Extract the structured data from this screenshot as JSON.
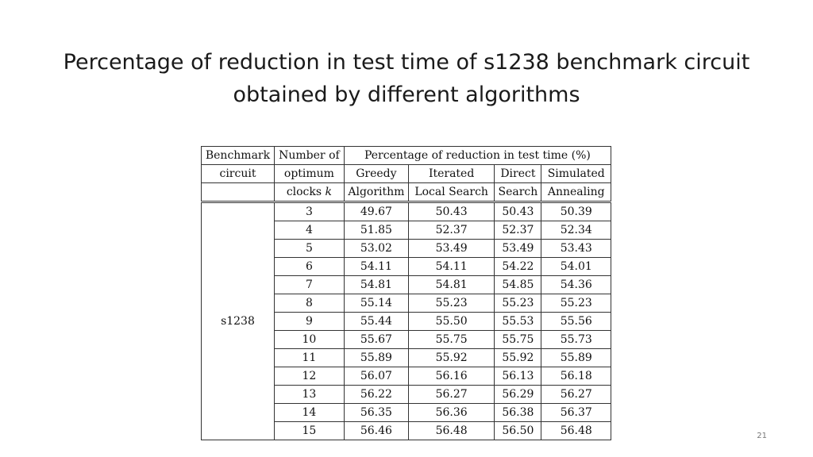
{
  "title": {
    "line1": "Percentage of reduction in test time of s1238 benchmark circuit",
    "line2": "obtained by different algorithms"
  },
  "table": {
    "headers": {
      "benchmark": [
        "Benchmark",
        "circuit",
        ""
      ],
      "clocks": [
        "Number of",
        "optimum",
        "clocks"
      ],
      "clocks_var": "k",
      "group": "Percentage of reduction in test time (%)",
      "greedy": [
        "Greedy",
        "Algorithm"
      ],
      "ils": [
        "Iterated",
        "Local Search"
      ],
      "direct": [
        "Direct",
        "Search"
      ],
      "sa": [
        "Simulated",
        "Annealing"
      ]
    },
    "circuit": "s1238",
    "rows": [
      {
        "k": "3",
        "greedy": "49.67",
        "ils": "50.43",
        "direct": "50.43",
        "sa": "50.39"
      },
      {
        "k": "4",
        "greedy": "51.85",
        "ils": "52.37",
        "direct": "52.37",
        "sa": "52.34"
      },
      {
        "k": "5",
        "greedy": "53.02",
        "ils": "53.49",
        "direct": "53.49",
        "sa": "53.43"
      },
      {
        "k": "6",
        "greedy": "54.11",
        "ils": "54.11",
        "direct": "54.22",
        "sa": "54.01"
      },
      {
        "k": "7",
        "greedy": "54.81",
        "ils": "54.81",
        "direct": "54.85",
        "sa": "54.36"
      },
      {
        "k": "8",
        "greedy": "55.14",
        "ils": "55.23",
        "direct": "55.23",
        "sa": "55.23"
      },
      {
        "k": "9",
        "greedy": "55.44",
        "ils": "55.50",
        "direct": "55.53",
        "sa": "55.56"
      },
      {
        "k": "10",
        "greedy": "55.67",
        "ils": "55.75",
        "direct": "55.75",
        "sa": "55.73"
      },
      {
        "k": "11",
        "greedy": "55.89",
        "ils": "55.92",
        "direct": "55.92",
        "sa": "55.89"
      },
      {
        "k": "12",
        "greedy": "56.07",
        "ils": "56.16",
        "direct": "56.13",
        "sa": "56.18"
      },
      {
        "k": "13",
        "greedy": "56.22",
        "ils": "56.27",
        "direct": "56.29",
        "sa": "56.27"
      },
      {
        "k": "14",
        "greedy": "56.35",
        "ils": "56.36",
        "direct": "56.38",
        "sa": "56.37"
      },
      {
        "k": "15",
        "greedy": "56.46",
        "ils": "56.48",
        "direct": "56.50",
        "sa": "56.48"
      }
    ]
  },
  "page_number": "21"
}
